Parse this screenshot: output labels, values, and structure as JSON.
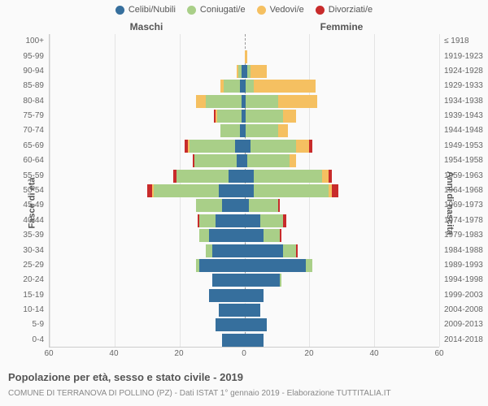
{
  "type": "population-pyramid",
  "colors": {
    "celibi": "#366f9d",
    "coniugati": "#a9cf88",
    "vedovi": "#f5c061",
    "divorziati": "#c82b2b",
    "background": "#fafafa",
    "grid": "#e4e4e4",
    "center": "#999999",
    "text": "#555555"
  },
  "legend": [
    {
      "label": "Celibi/Nubili",
      "color": "#366f9d"
    },
    {
      "label": "Coniugati/e",
      "color": "#a9cf88"
    },
    {
      "label": "Vedovi/e",
      "color": "#f5c061"
    },
    {
      "label": "Divorziati/e",
      "color": "#c82b2b"
    }
  ],
  "header_m": "Maschi",
  "header_f": "Femmine",
  "y_title_left": "Fasce di età",
  "y_title_right": "Anni di nascita",
  "x_max": 60,
  "x_ticks": [
    60,
    40,
    20,
    0,
    20,
    40,
    60
  ],
  "title": "Popolazione per età, sesso e stato civile - 2019",
  "subtitle": "COMUNE DI TERRANOVA DI POLLINO (PZ) - Dati ISTAT 1° gennaio 2019 - Elaborazione TUTTITALIA.IT",
  "rows": [
    {
      "age": "100+",
      "year": "≤ 1918",
      "m": {
        "c": 0,
        "k": 0,
        "v": 0,
        "d": 0
      },
      "f": {
        "c": 0,
        "k": 0,
        "v": 0,
        "d": 0
      }
    },
    {
      "age": "95-99",
      "year": "1919-1923",
      "m": {
        "c": 0,
        "k": 0,
        "v": 0,
        "d": 0
      },
      "f": {
        "c": 0,
        "k": 0,
        "v": 2,
        "d": 0
      }
    },
    {
      "age": "90-94",
      "year": "1924-1928",
      "m": {
        "c": 2,
        "k": 2,
        "v": 1,
        "d": 0
      },
      "f": {
        "c": 2,
        "k": 2,
        "v": 10,
        "d": 0
      }
    },
    {
      "age": "85-89",
      "year": "1929-1933",
      "m": {
        "c": 3,
        "k": 10,
        "v": 2,
        "d": 0
      },
      "f": {
        "c": 1,
        "k": 5,
        "v": 38,
        "d": 0
      }
    },
    {
      "age": "80-84",
      "year": "1934-1938",
      "m": {
        "c": 2,
        "k": 22,
        "v": 6,
        "d": 0
      },
      "f": {
        "c": 1,
        "k": 20,
        "v": 24,
        "d": 0
      }
    },
    {
      "age": "75-79",
      "year": "1939-1943",
      "m": {
        "c": 2,
        "k": 15,
        "v": 1,
        "d": 1
      },
      "f": {
        "c": 1,
        "k": 23,
        "v": 8,
        "d": 0
      }
    },
    {
      "age": "70-74",
      "year": "1944-1948",
      "m": {
        "c": 3,
        "k": 12,
        "v": 0,
        "d": 0
      },
      "f": {
        "c": 1,
        "k": 20,
        "v": 6,
        "d": 0
      }
    },
    {
      "age": "65-69",
      "year": "1949-1953",
      "m": {
        "c": 6,
        "k": 28,
        "v": 1,
        "d": 2
      },
      "f": {
        "c": 4,
        "k": 28,
        "v": 8,
        "d": 2
      }
    },
    {
      "age": "60-64",
      "year": "1954-1958",
      "m": {
        "c": 5,
        "k": 26,
        "v": 0,
        "d": 1
      },
      "f": {
        "c": 2,
        "k": 26,
        "v": 4,
        "d": 0
      }
    },
    {
      "age": "55-59",
      "year": "1959-1963",
      "m": {
        "c": 10,
        "k": 32,
        "v": 0,
        "d": 2
      },
      "f": {
        "c": 6,
        "k": 42,
        "v": 4,
        "d": 2
      }
    },
    {
      "age": "50-54",
      "year": "1964-1968",
      "m": {
        "c": 16,
        "k": 40,
        "v": 1,
        "d": 3
      },
      "f": {
        "c": 6,
        "k": 46,
        "v": 2,
        "d": 4
      }
    },
    {
      "age": "45-49",
      "year": "1969-1973",
      "m": {
        "c": 14,
        "k": 16,
        "v": 0,
        "d": 0
      },
      "f": {
        "c": 3,
        "k": 18,
        "v": 0,
        "d": 1
      }
    },
    {
      "age": "40-44",
      "year": "1974-1978",
      "m": {
        "c": 18,
        "k": 10,
        "v": 0,
        "d": 1
      },
      "f": {
        "c": 10,
        "k": 14,
        "v": 0,
        "d": 2
      }
    },
    {
      "age": "35-39",
      "year": "1979-1983",
      "m": {
        "c": 22,
        "k": 6,
        "v": 0,
        "d": 0
      },
      "f": {
        "c": 12,
        "k": 10,
        "v": 0,
        "d": 1
      }
    },
    {
      "age": "30-34",
      "year": "1984-1988",
      "m": {
        "c": 20,
        "k": 4,
        "v": 0,
        "d": 0
      },
      "f": {
        "c": 24,
        "k": 8,
        "v": 0,
        "d": 1
      }
    },
    {
      "age": "25-29",
      "year": "1989-1993",
      "m": {
        "c": 28,
        "k": 2,
        "v": 0,
        "d": 0
      },
      "f": {
        "c": 38,
        "k": 4,
        "v": 0,
        "d": 0
      }
    },
    {
      "age": "20-24",
      "year": "1994-1998",
      "m": {
        "c": 20,
        "k": 0,
        "v": 0,
        "d": 0
      },
      "f": {
        "c": 22,
        "k": 1,
        "v": 0,
        "d": 0
      }
    },
    {
      "age": "15-19",
      "year": "1999-2003",
      "m": {
        "c": 22,
        "k": 0,
        "v": 0,
        "d": 0
      },
      "f": {
        "c": 12,
        "k": 0,
        "v": 0,
        "d": 0
      }
    },
    {
      "age": "10-14",
      "year": "2004-2008",
      "m": {
        "c": 16,
        "k": 0,
        "v": 0,
        "d": 0
      },
      "f": {
        "c": 10,
        "k": 0,
        "v": 0,
        "d": 0
      }
    },
    {
      "age": "5-9",
      "year": "2009-2013",
      "m": {
        "c": 18,
        "k": 0,
        "v": 0,
        "d": 0
      },
      "f": {
        "c": 14,
        "k": 0,
        "v": 0,
        "d": 0
      }
    },
    {
      "age": "0-4",
      "year": "2014-2018",
      "m": {
        "c": 14,
        "k": 0,
        "v": 0,
        "d": 0
      },
      "f": {
        "c": 12,
        "k": 0,
        "v": 0,
        "d": 0
      }
    }
  ]
}
